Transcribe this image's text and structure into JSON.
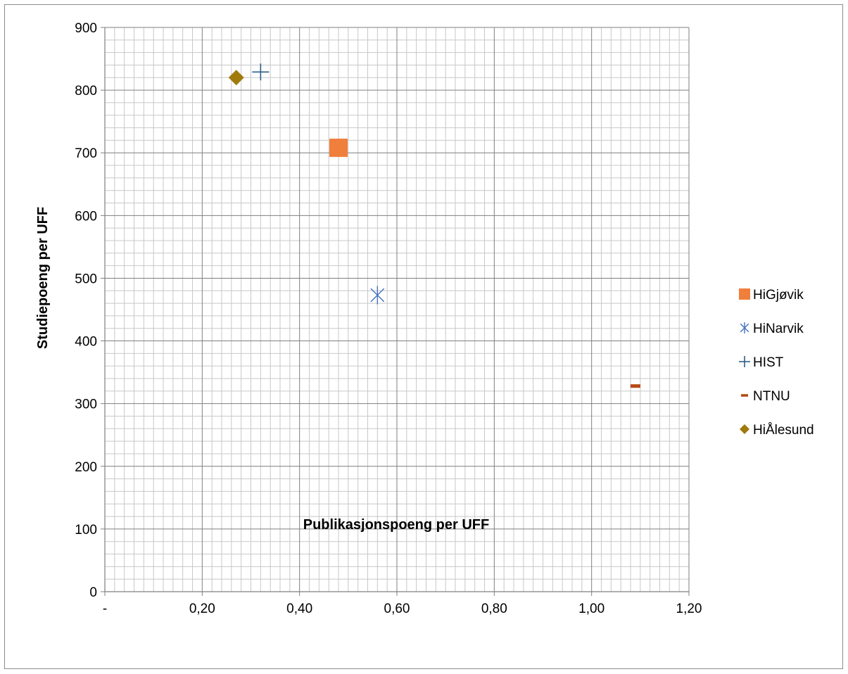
{
  "chart_data": {
    "type": "scatter",
    "title": "",
    "xlabel": "Publikasjonspoeng per UFF",
    "ylabel": "Studiepoeng per UFF",
    "xlim": [
      0,
      1.2
    ],
    "ylim": [
      0,
      900
    ],
    "x_ticks": [
      {
        "value": 0,
        "label": "-"
      },
      {
        "value": 0.2,
        "label": "0,20"
      },
      {
        "value": 0.4,
        "label": "0,40"
      },
      {
        "value": 0.6,
        "label": "0,60"
      },
      {
        "value": 0.8,
        "label": "0,80"
      },
      {
        "value": 1.0,
        "label": "1,00"
      },
      {
        "value": 1.2,
        "label": "1,20"
      }
    ],
    "y_ticks": [
      {
        "value": 0,
        "label": "0"
      },
      {
        "value": 100,
        "label": "100"
      },
      {
        "value": 200,
        "label": "200"
      },
      {
        "value": 300,
        "label": "300"
      },
      {
        "value": 400,
        "label": "400"
      },
      {
        "value": 500,
        "label": "500"
      },
      {
        "value": 600,
        "label": "600"
      },
      {
        "value": 700,
        "label": "700"
      },
      {
        "value": 800,
        "label": "800"
      },
      {
        "value": 900,
        "label": "900"
      }
    ],
    "x_minor_divisions": 10,
    "y_minor_divisions": 5,
    "grid": true,
    "legend_position": "right",
    "series": [
      {
        "name": "HiGjøvik",
        "marker": "square",
        "color": "#f07f3c",
        "x": [
          0.48
        ],
        "y": [
          708
        ]
      },
      {
        "name": "HiNarvik",
        "marker": "asterisk",
        "color": "#4472c4",
        "x": [
          0.56
        ],
        "y": [
          473
        ]
      },
      {
        "name": "HIST",
        "marker": "plus",
        "color": "#2e5f8a",
        "x": [
          0.32
        ],
        "y": [
          829
        ]
      },
      {
        "name": "NTNU",
        "marker": "dash",
        "color": "#b54a17",
        "x": [
          1.09
        ],
        "y": [
          328
        ]
      },
      {
        "name": "HiÅlesund",
        "marker": "diamond",
        "color": "#a07a0c",
        "x": [
          0.27
        ],
        "y": [
          820
        ]
      }
    ]
  }
}
